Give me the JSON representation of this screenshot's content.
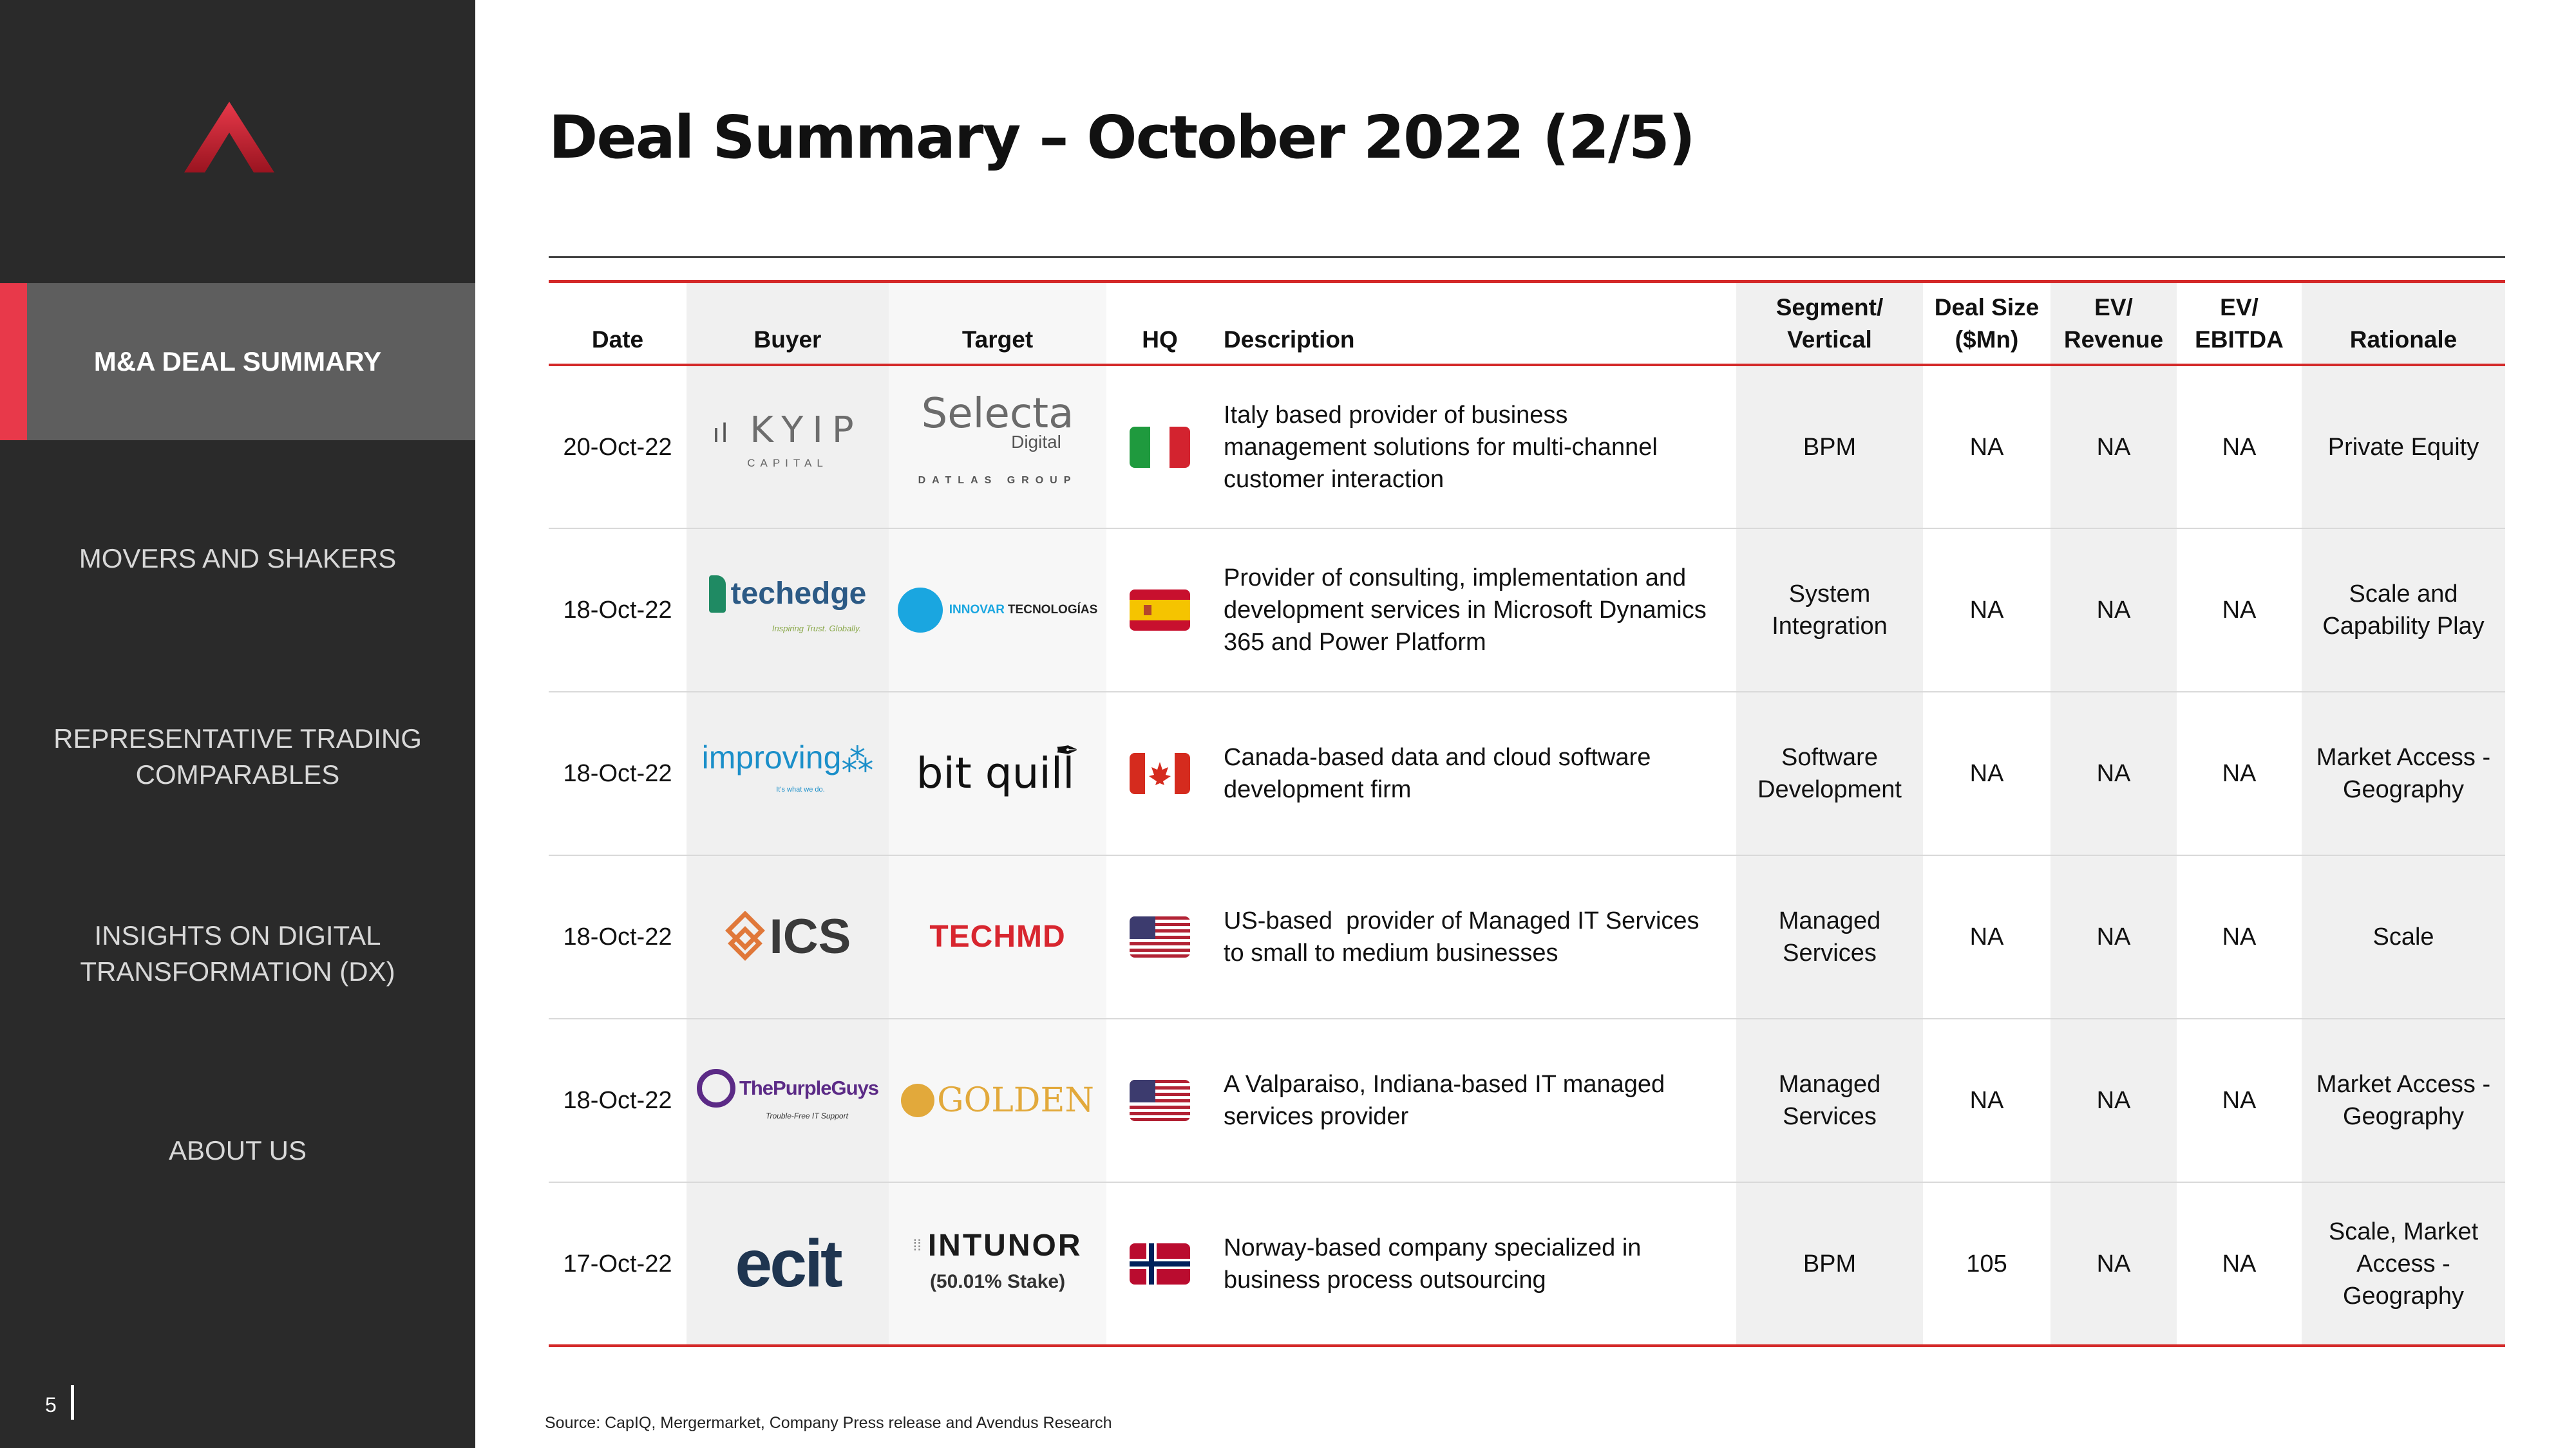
{
  "sidebar": {
    "nav": [
      {
        "label": "M&A DEAL SUMMARY",
        "active": true
      },
      {
        "label": "MOVERS AND SHAKERS"
      },
      {
        "label_lines": [
          "REPRESENTATIVE TRADING",
          "COMPARABLES"
        ]
      },
      {
        "label_lines": [
          "INSIGHTS ON DIGITAL",
          "TRANSFORMATION (DX)"
        ]
      },
      {
        "label": "ABOUT US"
      }
    ],
    "page_number": "5",
    "logo_icon": "avendus-logo-icon",
    "accent_color": "#e8394a"
  },
  "page": {
    "title": "Deal Summary – October 2022 (2/5)"
  },
  "table": {
    "headers": {
      "date": "Date",
      "buyer": "Buyer",
      "target": "Target",
      "hq": "HQ",
      "description": "Description",
      "segment_1": "Segment/",
      "segment_2": "Vertical",
      "deal_size_1": "Deal Size",
      "deal_size_2": "($Mn)",
      "ev_rev_1": "EV/",
      "ev_rev_2": "Revenue",
      "ev_ebitda_1": "EV/",
      "ev_ebitda_2": "EBITDA",
      "rationale": "Rationale"
    },
    "rows": [
      {
        "date": "20-Oct-22",
        "buyer_logo": {
          "text": "KYIP",
          "sub": "CAPITAL"
        },
        "target_logo": {
          "text": "Selecta",
          "sub": "Digital",
          "sub2": "DATLAS GROUP"
        },
        "hq_flag": "italy-flag-icon",
        "description": [
          "Italy based provider of business",
          "management solutions for multi-channel",
          "customer interaction"
        ],
        "segment": [
          "BPM"
        ],
        "deal_size": "NA",
        "ev_revenue": "NA",
        "ev_ebitda": "NA",
        "rationale": [
          "Private Equity"
        ]
      },
      {
        "date": "18-Oct-22",
        "buyer_logo": {
          "text": "techedge",
          "sub": "Inspiring Trust. Globally."
        },
        "target_logo": {
          "text": "INNOVAR",
          "sub": "TECNOLOGÍAS"
        },
        "hq_flag": "spain-flag-icon",
        "description": [
          "Provider of consulting, implementation and",
          "development services in Microsoft Dynamics",
          "365 and Power Platform"
        ],
        "segment": [
          "System",
          "Integration"
        ],
        "deal_size": "NA",
        "ev_revenue": "NA",
        "ev_ebitda": "NA",
        "rationale": [
          "Scale and",
          "Capability Play"
        ]
      },
      {
        "date": "18-Oct-22",
        "buyer_logo": {
          "text": "improving",
          "sub": "It's what we do."
        },
        "target_logo": {
          "text": "bit quill"
        },
        "hq_flag": "canada-flag-icon",
        "description": [
          "Canada-based data and cloud software",
          "development firm"
        ],
        "segment": [
          "Software",
          "Development"
        ],
        "deal_size": "NA",
        "ev_revenue": "NA",
        "ev_ebitda": "NA",
        "rationale": [
          "Market Access -",
          "Geography"
        ]
      },
      {
        "date": "18-Oct-22",
        "buyer_logo": {
          "text": "ICS"
        },
        "target_logo": {
          "text": "TECHMD"
        },
        "hq_flag": "usa-flag-icon",
        "description": [
          "US-based  provider of Managed IT Services",
          "to small to medium businesses"
        ],
        "segment": [
          "Managed",
          "Services"
        ],
        "deal_size": "NA",
        "ev_revenue": "NA",
        "ev_ebitda": "NA",
        "rationale": [
          "Scale"
        ]
      },
      {
        "date": "18-Oct-22",
        "buyer_logo": {
          "text": "ThePurpleGuys",
          "sub": "Trouble-Free IT Support"
        },
        "target_logo": {
          "text": "GOLDEN"
        },
        "hq_flag": "usa-flag-icon",
        "description": [
          "A Valparaiso, Indiana-based IT managed",
          "services provider"
        ],
        "segment": [
          "Managed",
          "Services"
        ],
        "deal_size": "NA",
        "ev_revenue": "NA",
        "ev_ebitda": "NA",
        "rationale": [
          "Market Access -",
          "Geography"
        ]
      },
      {
        "date": "17-Oct-22",
        "buyer_logo": {
          "text": "ecit"
        },
        "target_logo": {
          "text": "INTUNOR",
          "note": "(50.01% Stake)"
        },
        "hq_flag": "norway-flag-icon",
        "description": [
          "Norway-based company specialized in",
          "business process outsourcing"
        ],
        "segment": [
          "BPM"
        ],
        "deal_size": "105",
        "ev_revenue": "NA",
        "ev_ebitda": "NA",
        "rationale": [
          "Scale, Market",
          "Access -",
          "Geography"
        ]
      }
    ]
  },
  "footer": {
    "source": "Source: CapIQ, Mergermarket, Company Press release and Avendus Research"
  }
}
